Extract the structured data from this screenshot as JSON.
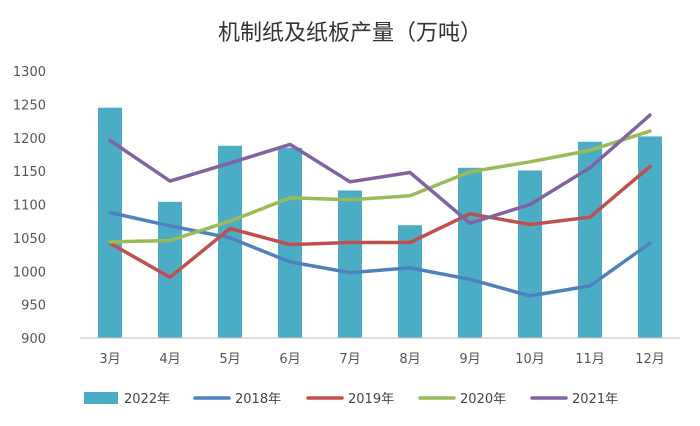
{
  "chart_data": {
    "type": "bar+line",
    "title": "机制纸及纸板产量（万吨）",
    "categories": [
      "3月",
      "4月",
      "5月",
      "6月",
      "7月",
      "8月",
      "9月",
      "10月",
      "11月",
      "12月"
    ],
    "ylim": [
      900,
      1300
    ],
    "yticks": [
      900,
      950,
      1000,
      1050,
      1100,
      1150,
      1200,
      1250,
      1300
    ],
    "bar_series": {
      "name": "2022年",
      "color": "#4BACC6",
      "values": [
        1245,
        1104,
        1188,
        1185,
        1121,
        1069,
        1155,
        1151,
        1194,
        1202
      ]
    },
    "line_series": [
      {
        "name": "2018年",
        "color": "#4F81BD",
        "values": [
          1088,
          1068,
          1050,
          1014,
          998,
          1005,
          988,
          963,
          978,
          1042
        ]
      },
      {
        "name": "2019年",
        "color": "#C0504D",
        "values": [
          1042,
          991,
          1064,
          1040,
          1043,
          1043,
          1086,
          1070,
          1081,
          1157
        ]
      },
      {
        "name": "2020年",
        "color": "#9BBB59",
        "values": [
          1044,
          1046,
          1075,
          1110,
          1107,
          1113,
          1149,
          1164,
          1181,
          1210
        ]
      },
      {
        "name": "2021年",
        "color": "#8064A2",
        "values": [
          1196,
          1135,
          1162,
          1190,
          1134,
          1148,
          1072,
          1100,
          1155,
          1234
        ]
      }
    ],
    "legend_position": "bottom",
    "grid": false
  }
}
